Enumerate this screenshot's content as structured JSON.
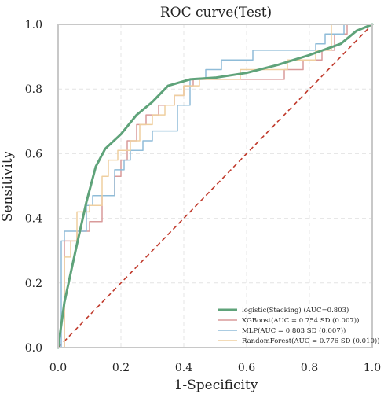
{
  "chart_data": {
    "type": "line",
    "title": "ROC curve(Test)",
    "xlabel": "1-Specificity",
    "ylabel": "Sensitivity",
    "xlim": [
      0.0,
      1.0
    ],
    "ylim": [
      0.0,
      1.0
    ],
    "xticks": [
      "0.0",
      "0.2",
      "0.4",
      "0.6",
      "0.8",
      "1.0"
    ],
    "yticks": [
      "0.0",
      "0.2",
      "0.4",
      "0.6",
      "0.8",
      "1.0"
    ],
    "grid": true,
    "legend_position": "bottom-right",
    "diagonal_color": "#c0392b",
    "series": [
      {
        "name": "logistic(Stacking) (AUC=0.803)",
        "color": "#5fa37a",
        "width": 3,
        "x": [
          0.0,
          0.02,
          0.06,
          0.09,
          0.12,
          0.15,
          0.2,
          0.25,
          0.3,
          0.35,
          0.42,
          0.5,
          0.6,
          0.7,
          0.8,
          0.9,
          0.95,
          1.0
        ],
        "y": [
          0.0,
          0.14,
          0.32,
          0.45,
          0.56,
          0.615,
          0.66,
          0.72,
          0.76,
          0.81,
          0.83,
          0.835,
          0.85,
          0.875,
          0.905,
          0.94,
          0.98,
          1.0
        ]
      },
      {
        "name": "XGBoost(AUC = 0.754 SD (0.007))",
        "color": "#d99a9a",
        "width": 1.5,
        "x": [
          0.0,
          0.02,
          0.02,
          0.06,
          0.06,
          0.1,
          0.1,
          0.14,
          0.14,
          0.18,
          0.18,
          0.2,
          0.2,
          0.22,
          0.22,
          0.25,
          0.25,
          0.28,
          0.28,
          0.32,
          0.32,
          0.37,
          0.37,
          0.4,
          0.4,
          0.43,
          0.43,
          0.72,
          0.72,
          0.78,
          0.78,
          0.84,
          0.84,
          0.88,
          0.88,
          0.92,
          0.92,
          1.0
        ],
        "y": [
          0.0,
          0.0,
          0.33,
          0.33,
          0.36,
          0.36,
          0.39,
          0.39,
          0.47,
          0.47,
          0.53,
          0.53,
          0.58,
          0.58,
          0.64,
          0.64,
          0.69,
          0.69,
          0.72,
          0.72,
          0.75,
          0.75,
          0.78,
          0.78,
          0.81,
          0.81,
          0.83,
          0.83,
          0.86,
          0.86,
          0.89,
          0.89,
          0.92,
          0.92,
          0.97,
          0.97,
          1.0,
          1.0
        ]
      },
      {
        "name": "MLP(AUC = 0.803 SD (0.007))",
        "color": "#8fbcd8",
        "width": 1.5,
        "x": [
          0.0,
          0.01,
          0.01,
          0.02,
          0.02,
          0.09,
          0.09,
          0.11,
          0.11,
          0.18,
          0.18,
          0.21,
          0.21,
          0.23,
          0.23,
          0.27,
          0.27,
          0.3,
          0.3,
          0.38,
          0.38,
          0.42,
          0.42,
          0.47,
          0.47,
          0.52,
          0.52,
          0.62,
          0.62,
          0.82,
          0.82,
          0.85,
          0.85,
          0.91,
          0.91,
          1.0
        ],
        "y": [
          0.0,
          0.0,
          0.33,
          0.33,
          0.36,
          0.36,
          0.44,
          0.44,
          0.47,
          0.47,
          0.55,
          0.55,
          0.58,
          0.58,
          0.61,
          0.61,
          0.64,
          0.64,
          0.67,
          0.67,
          0.75,
          0.75,
          0.83,
          0.83,
          0.86,
          0.86,
          0.89,
          0.89,
          0.92,
          0.92,
          0.94,
          0.94,
          0.97,
          0.97,
          1.0,
          1.0
        ]
      },
      {
        "name": "RandomForest(AUC = 0.776 SD (0.010))",
        "color": "#efcf9f",
        "width": 1.5,
        "x": [
          0.0,
          0.02,
          0.02,
          0.04,
          0.04,
          0.06,
          0.06,
          0.1,
          0.1,
          0.14,
          0.14,
          0.16,
          0.16,
          0.19,
          0.19,
          0.23,
          0.23,
          0.26,
          0.26,
          0.3,
          0.3,
          0.34,
          0.34,
          0.37,
          0.37,
          0.4,
          0.4,
          0.45,
          0.45,
          0.58,
          0.58,
          0.73,
          0.73,
          0.82,
          0.82,
          0.87,
          0.87,
          1.0
        ],
        "y": [
          0.0,
          0.0,
          0.28,
          0.28,
          0.33,
          0.33,
          0.42,
          0.42,
          0.44,
          0.44,
          0.53,
          0.53,
          0.58,
          0.58,
          0.61,
          0.61,
          0.64,
          0.64,
          0.69,
          0.69,
          0.72,
          0.72,
          0.75,
          0.75,
          0.78,
          0.78,
          0.81,
          0.81,
          0.83,
          0.83,
          0.86,
          0.86,
          0.89,
          0.89,
          0.92,
          0.92,
          1.0,
          1.0
        ]
      }
    ]
  }
}
